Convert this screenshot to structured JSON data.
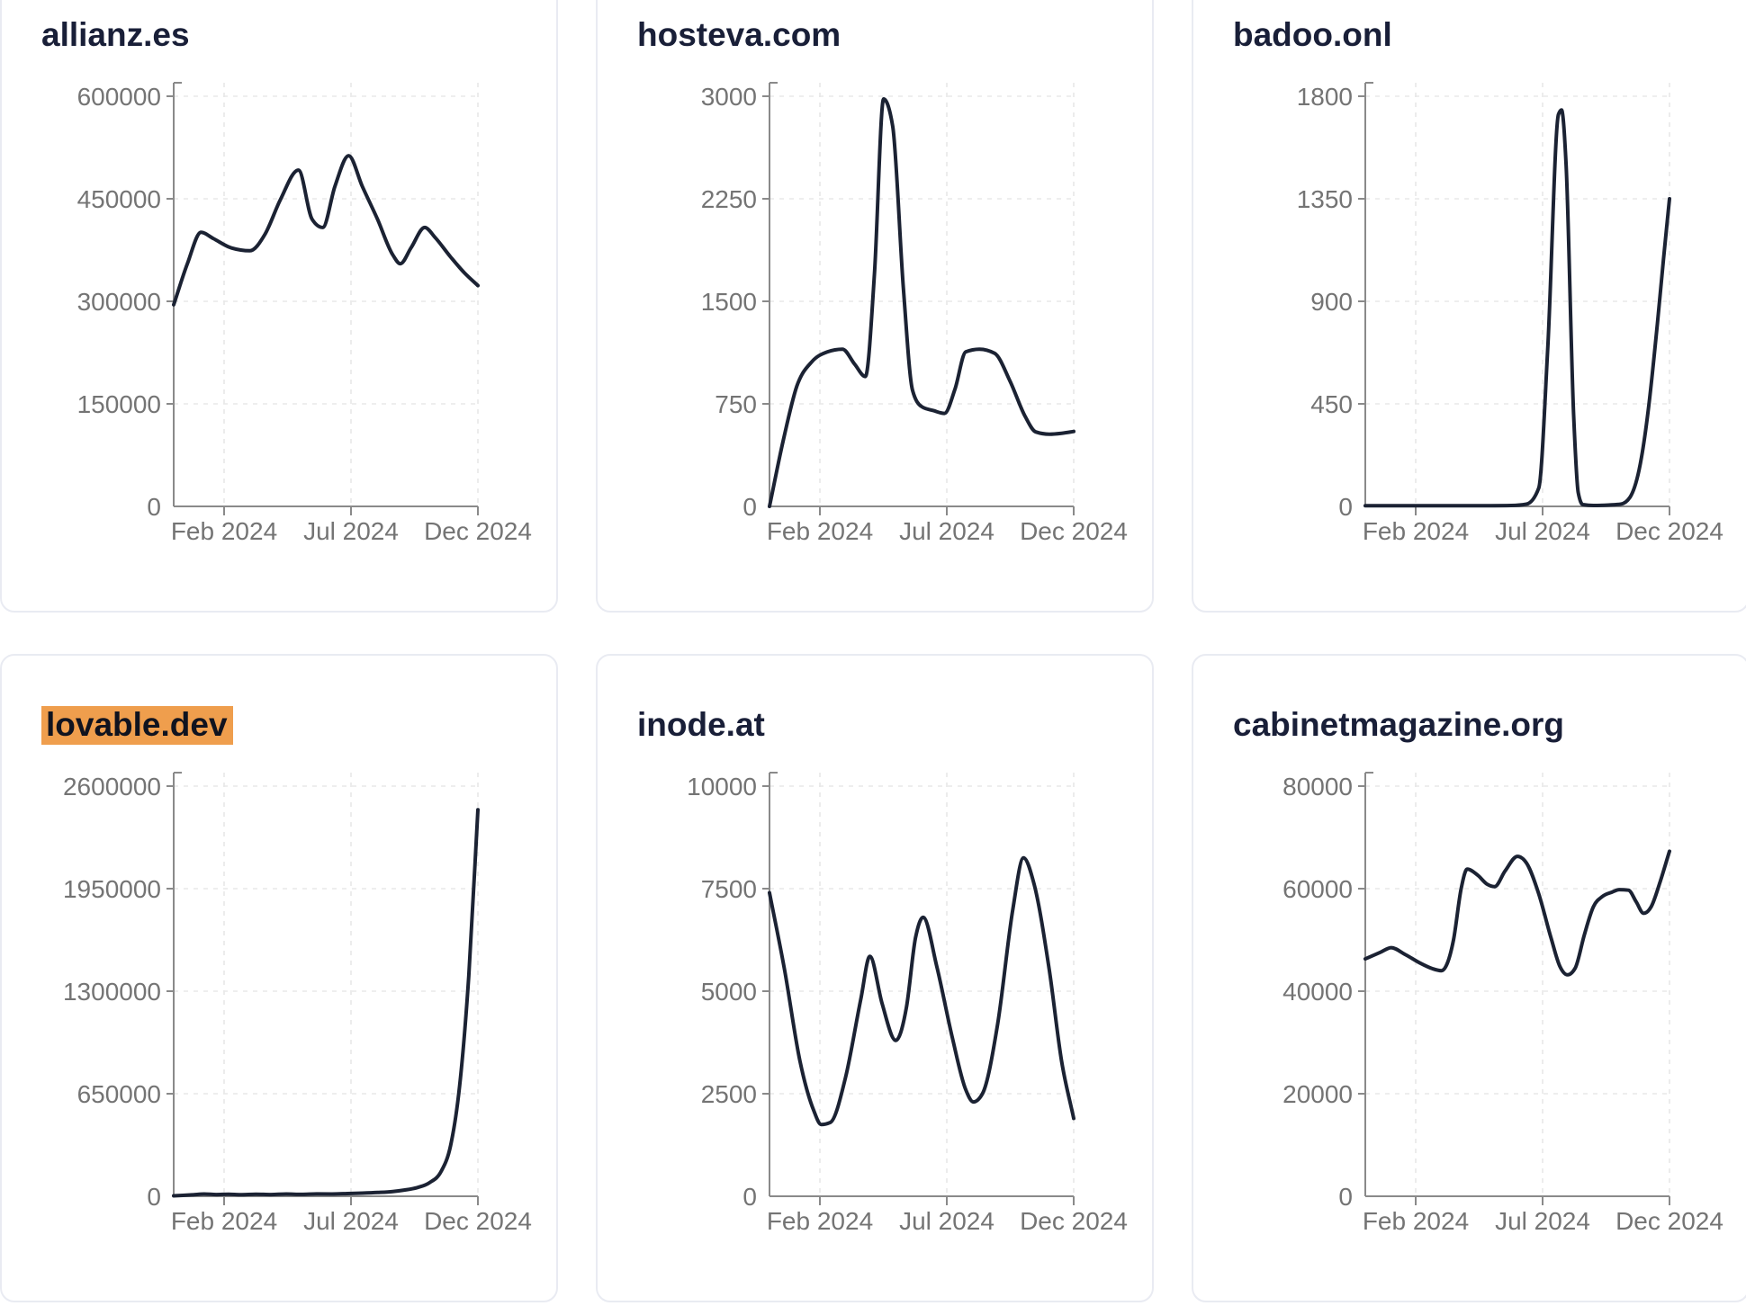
{
  "page": {
    "background": "#ffffff",
    "x_axis_note": "points_x are fractions of the plot width (0 = left edge of axis, 1 = rightmost tick 'Dec 2024')"
  },
  "colors": {
    "line": "#1b2233",
    "title": "#191f38",
    "axis": "#8a8a8a",
    "tick_label": "#747474",
    "gridline": "#e8e8e8",
    "card_border": "#e9ebf2",
    "highlight": "#ef9e4d",
    "highlight_text": "#10131f"
  },
  "chart_data": [
    {
      "type": "line",
      "title": "allianz.es",
      "highlighted": false,
      "legend": "none",
      "grid": "dashed",
      "x_ticks": [
        "Feb 2024",
        "Jul 2024",
        "Dec 2024"
      ],
      "y_ticks": [
        "0",
        "150000",
        "300000",
        "450000",
        "600000"
      ],
      "y_max": 600000,
      "points": [
        [
          0,
          295000
        ],
        [
          0.045,
          355000
        ],
        [
          0.09,
          401000
        ],
        [
          0.13,
          392000
        ],
        [
          0.19,
          378000
        ],
        [
          0.25,
          374000
        ],
        [
          0.3,
          398000
        ],
        [
          0.35,
          448000
        ],
        [
          0.41,
          492000
        ],
        [
          0.455,
          420000
        ],
        [
          0.49,
          408000
        ],
        [
          0.53,
          468000
        ],
        [
          0.575,
          513000
        ],
        [
          0.62,
          468000
        ],
        [
          0.67,
          420000
        ],
        [
          0.72,
          368000
        ],
        [
          0.745,
          355000
        ],
        [
          0.78,
          378000
        ],
        [
          0.825,
          408000
        ],
        [
          0.86,
          393000
        ],
        [
          0.91,
          365000
        ],
        [
          0.955,
          342000
        ],
        [
          1,
          323000
        ]
      ]
    },
    {
      "type": "line",
      "title": "hosteva.com",
      "highlighted": false,
      "legend": "none",
      "grid": "dashed",
      "x_ticks": [
        "Feb 2024",
        "Jul 2024",
        "Dec 2024"
      ],
      "y_ticks": [
        "0",
        "750",
        "1500",
        "2250",
        "3000"
      ],
      "y_max": 3000,
      "points": [
        [
          0,
          0
        ],
        [
          0.045,
          480
        ],
        [
          0.09,
          880
        ],
        [
          0.14,
          1060
        ],
        [
          0.19,
          1130
        ],
        [
          0.24,
          1150
        ],
        [
          0.28,
          1040
        ],
        [
          0.315,
          950
        ],
        [
          0.345,
          1700
        ],
        [
          0.375,
          2980
        ],
        [
          0.405,
          2780
        ],
        [
          0.44,
          1600
        ],
        [
          0.47,
          850
        ],
        [
          0.5,
          730
        ],
        [
          0.54,
          700
        ],
        [
          0.575,
          680
        ],
        [
          0.61,
          860
        ],
        [
          0.645,
          1130
        ],
        [
          0.69,
          1150
        ],
        [
          0.74,
          1120
        ],
        [
          0.79,
          920
        ],
        [
          0.84,
          660
        ],
        [
          0.875,
          545
        ],
        [
          0.92,
          528
        ],
        [
          0.96,
          535
        ],
        [
          1,
          548
        ]
      ]
    },
    {
      "type": "line",
      "title": "badoo.onl",
      "highlighted": false,
      "legend": "none",
      "grid": "dashed",
      "x_ticks": [
        "Feb 2024",
        "Jul 2024",
        "Dec 2024"
      ],
      "y_ticks": [
        "0",
        "450",
        "900",
        "1350",
        "1800"
      ],
      "y_max": 1800,
      "points": [
        [
          0,
          3
        ],
        [
          0.1,
          3
        ],
        [
          0.2,
          3
        ],
        [
          0.3,
          3
        ],
        [
          0.4,
          3
        ],
        [
          0.48,
          4
        ],
        [
          0.53,
          10
        ],
        [
          0.57,
          80
        ],
        [
          0.6,
          700
        ],
        [
          0.635,
          1720
        ],
        [
          0.645,
          1740
        ],
        [
          0.66,
          1500
        ],
        [
          0.685,
          400
        ],
        [
          0.7,
          60
        ],
        [
          0.715,
          8
        ],
        [
          0.75,
          4
        ],
        [
          0.8,
          6
        ],
        [
          0.84,
          10
        ],
        [
          0.87,
          40
        ],
        [
          0.9,
          160
        ],
        [
          0.93,
          420
        ],
        [
          0.96,
          800
        ],
        [
          0.98,
          1080
        ],
        [
          1,
          1350
        ]
      ]
    },
    {
      "type": "line",
      "title": "lovable.dev",
      "highlighted": true,
      "legend": "none",
      "grid": "dashed",
      "x_ticks": [
        "Feb 2024",
        "Jul 2024",
        "Dec 2024"
      ],
      "y_ticks": [
        "0",
        "650000",
        "1300000",
        "1950000",
        "2600000"
      ],
      "y_max": 2600000,
      "points": [
        [
          0,
          3000
        ],
        [
          0.06,
          9000
        ],
        [
          0.1,
          14000
        ],
        [
          0.14,
          11000
        ],
        [
          0.18,
          13000
        ],
        [
          0.22,
          10000
        ],
        [
          0.27,
          13000
        ],
        [
          0.32,
          11000
        ],
        [
          0.37,
          14000
        ],
        [
          0.42,
          12000
        ],
        [
          0.47,
          15000
        ],
        [
          0.52,
          14000
        ],
        [
          0.57,
          17000
        ],
        [
          0.62,
          20000
        ],
        [
          0.67,
          24000
        ],
        [
          0.72,
          30000
        ],
        [
          0.76,
          40000
        ],
        [
          0.8,
          55000
        ],
        [
          0.84,
          85000
        ],
        [
          0.88,
          160000
        ],
        [
          0.91,
          320000
        ],
        [
          0.94,
          700000
        ],
        [
          0.97,
          1400000
        ],
        [
          1,
          2450000
        ]
      ]
    },
    {
      "type": "line",
      "title": "inode.at",
      "highlighted": false,
      "legend": "none",
      "grid": "dashed",
      "x_ticks": [
        "Feb 2024",
        "Jul 2024",
        "Dec 2024"
      ],
      "y_ticks": [
        "0",
        "2500",
        "5000",
        "7500",
        "10000"
      ],
      "y_max": 10000,
      "points": [
        [
          0,
          7400
        ],
        [
          0.05,
          5500
        ],
        [
          0.1,
          3300
        ],
        [
          0.145,
          2100
        ],
        [
          0.17,
          1750
        ],
        [
          0.2,
          1800
        ],
        [
          0.25,
          2900
        ],
        [
          0.3,
          4800
        ],
        [
          0.33,
          5850
        ],
        [
          0.37,
          4700
        ],
        [
          0.415,
          3800
        ],
        [
          0.45,
          4600
        ],
        [
          0.48,
          6300
        ],
        [
          0.505,
          6800
        ],
        [
          0.55,
          5600
        ],
        [
          0.6,
          3900
        ],
        [
          0.645,
          2600
        ],
        [
          0.67,
          2300
        ],
        [
          0.7,
          2500
        ],
        [
          0.75,
          4200
        ],
        [
          0.8,
          7000
        ],
        [
          0.835,
          8250
        ],
        [
          0.87,
          7600
        ],
        [
          0.92,
          5500
        ],
        [
          0.96,
          3300
        ],
        [
          1,
          1900
        ]
      ]
    },
    {
      "type": "line",
      "title": "cabinetmagazine.org",
      "highlighted": false,
      "legend": "none",
      "grid": "dashed",
      "x_ticks": [
        "Feb 2024",
        "Jul 2024",
        "Dec 2024"
      ],
      "y_ticks": [
        "0",
        "20000",
        "40000",
        "60000",
        "80000"
      ],
      "y_max": 80000,
      "points": [
        [
          0,
          46300
        ],
        [
          0.05,
          47600
        ],
        [
          0.085,
          48500
        ],
        [
          0.13,
          47200
        ],
        [
          0.18,
          45500
        ],
        [
          0.22,
          44400
        ],
        [
          0.25,
          44000
        ],
        [
          0.29,
          50000
        ],
        [
          0.315,
          60000
        ],
        [
          0.335,
          63800
        ],
        [
          0.37,
          62600
        ],
        [
          0.4,
          60900
        ],
        [
          0.425,
          60400
        ],
        [
          0.46,
          63500
        ],
        [
          0.5,
          66300
        ],
        [
          0.53,
          65000
        ],
        [
          0.57,
          59000
        ],
        [
          0.61,
          50500
        ],
        [
          0.64,
          44800
        ],
        [
          0.665,
          43200
        ],
        [
          0.69,
          44500
        ],
        [
          0.72,
          51000
        ],
        [
          0.75,
          56500
        ],
        [
          0.78,
          58500
        ],
        [
          0.81,
          59300
        ],
        [
          0.835,
          59800
        ],
        [
          0.865,
          59700
        ],
        [
          0.89,
          57500
        ],
        [
          0.915,
          55200
        ],
        [
          0.94,
          56500
        ],
        [
          0.97,
          61500
        ],
        [
          1,
          67300
        ]
      ]
    }
  ]
}
